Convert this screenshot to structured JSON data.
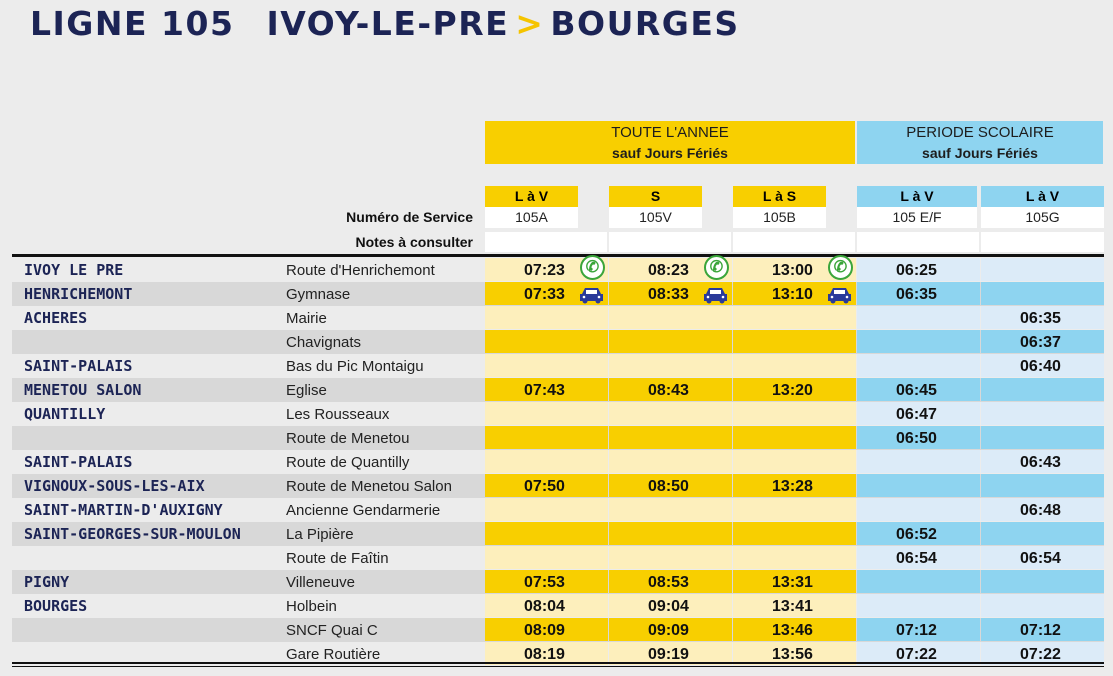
{
  "header": {
    "line": "LIGNE 105",
    "origin": "IVOY-LE-PRE",
    "arrow": ">",
    "destination": "BOURGES"
  },
  "periods": {
    "all_year": {
      "line1": "TOUTE L'ANNEE",
      "line2": "sauf Jours Fériés"
    },
    "school": {
      "line1": "PERIODE SCOLAIRE",
      "line2": "sauf Jours Fériés"
    }
  },
  "labels": {
    "service_number": "Numéro de Service",
    "notes": "Notes à consulter"
  },
  "columns": [
    {
      "days": "L à V",
      "service": "105A",
      "period": "all_year"
    },
    {
      "days": "S",
      "service": "105V",
      "period": "all_year"
    },
    {
      "days": "L à S",
      "service": "105B",
      "period": "all_year"
    },
    {
      "days": "L à V",
      "service": "105 E/F",
      "period": "school"
    },
    {
      "days": "L à V",
      "service": "105G",
      "period": "school"
    }
  ],
  "colors": {
    "title": "#1c2455",
    "arrow": "#f5c400",
    "yellow": "#f8cf00",
    "yellow_light": "#fdefbc",
    "blue": "#8ed4f0",
    "blue_light": "#dcebf8",
    "phone_green": "#3aa53a",
    "car_blue": "#2a3a9a"
  },
  "rows": [
    {
      "town": "IVOY LE PRE",
      "stop": "Route d'Henrichemont",
      "times": [
        "07:23",
        "08:23",
        "13:00",
        "06:25",
        ""
      ],
      "icon": "phone-icon"
    },
    {
      "town": "HENRICHEMONT",
      "stop": "Gymnase",
      "times": [
        "07:33",
        "08:33",
        "13:10",
        "06:35",
        ""
      ],
      "icon": "car-icon"
    },
    {
      "town": "ACHERES",
      "stop": "Mairie",
      "times": [
        "",
        "",
        "",
        "",
        "06:35"
      ]
    },
    {
      "town": "",
      "stop": "Chavignats",
      "times": [
        "",
        "",
        "",
        "",
        "06:37"
      ]
    },
    {
      "town": "SAINT-PALAIS",
      "stop": "Bas du Pic Montaigu",
      "times": [
        "",
        "",
        "",
        "",
        "06:40"
      ]
    },
    {
      "town": "MENETOU SALON",
      "stop": "Eglise",
      "times": [
        "07:43",
        "08:43",
        "13:20",
        "06:45",
        ""
      ]
    },
    {
      "town": "QUANTILLY",
      "stop": "Les Rousseaux",
      "times": [
        "",
        "",
        "",
        "06:47",
        ""
      ]
    },
    {
      "town": "",
      "stop": "Route de Menetou",
      "times": [
        "",
        "",
        "",
        "06:50",
        ""
      ]
    },
    {
      "town": "SAINT-PALAIS",
      "stop": "Route de Quantilly",
      "times": [
        "",
        "",
        "",
        "",
        "06:43"
      ]
    },
    {
      "town": "VIGNOUX-SOUS-LES-AIX",
      "stop": "Route de Menetou Salon",
      "times": [
        "07:50",
        "08:50",
        "13:28",
        "",
        ""
      ]
    },
    {
      "town": "SAINT-MARTIN-D'AUXIGNY",
      "stop": "Ancienne Gendarmerie",
      "times": [
        "",
        "",
        "",
        "",
        "06:48"
      ]
    },
    {
      "town": "SAINT-GEORGES-SUR-MOULON",
      "stop": "La Pipière",
      "times": [
        "",
        "",
        "",
        "06:52",
        ""
      ]
    },
    {
      "town": "",
      "stop": "Route de Faîtin",
      "times": [
        "",
        "",
        "",
        "06:54",
        "06:54"
      ]
    },
    {
      "town": "PIGNY",
      "stop": "Villeneuve",
      "times": [
        "07:53",
        "08:53",
        "13:31",
        "",
        ""
      ]
    },
    {
      "town": "BOURGES",
      "stop": "Holbein",
      "times": [
        "08:04",
        "09:04",
        "13:41",
        "",
        ""
      ]
    },
    {
      "town": "",
      "stop": "SNCF Quai C",
      "times": [
        "08:09",
        "09:09",
        "13:46",
        "07:12",
        "07:12"
      ]
    },
    {
      "town": "",
      "stop": "Gare Routière",
      "times": [
        "08:19",
        "09:19",
        "13:56",
        "07:22",
        "07:22"
      ]
    }
  ]
}
